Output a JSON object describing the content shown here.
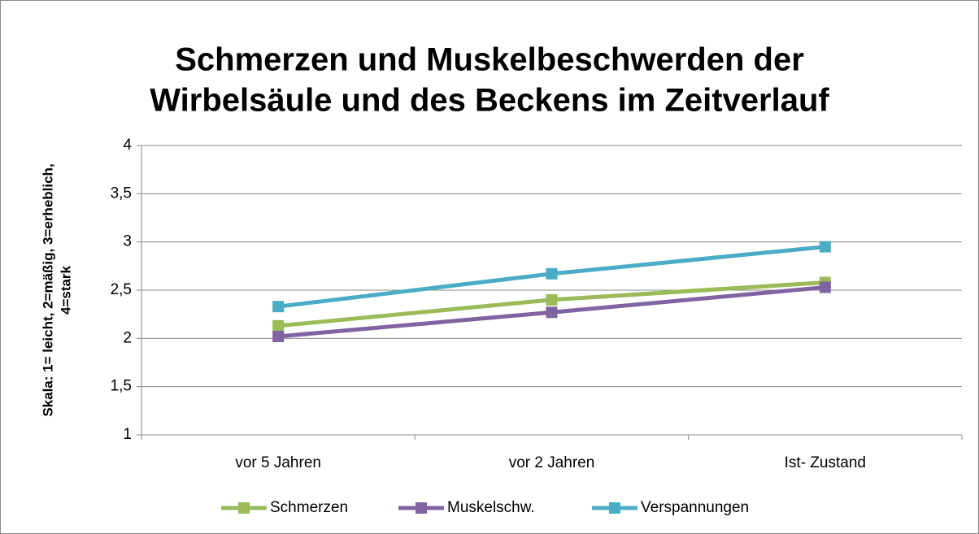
{
  "chart_data": {
    "type": "line",
    "title": [
      "Schmerzen und Muskelbeschwerden der",
      "Wirbelsäule und des Beckens  im Zeitverlauf"
    ],
    "ylabel": [
      "Skala: 1= leicht, 2=mäßig, 3=erheblich,",
      "4=stark"
    ],
    "categories": [
      "vor 5 Jahren",
      "vor 2 Jahren",
      "Ist- Zustand"
    ],
    "series": [
      {
        "name": "Schmerzen",
        "color": "#9bbb59",
        "values": [
          2.13,
          2.4,
          2.58
        ]
      },
      {
        "name": "Muskelschw.",
        "color": "#8064a2",
        "values": [
          2.02,
          2.27,
          2.53
        ]
      },
      {
        "name": "Verspannungen",
        "color": "#4bacc6",
        "values": [
          2.33,
          2.67,
          2.95
        ]
      }
    ],
    "ylim": [
      1,
      4
    ],
    "yticks": [
      1,
      {
        "value": 1.5,
        "label": "1,5"
      },
      2,
      {
        "value": 2.5,
        "label": "2,5"
      },
      3,
      {
        "value": 3.5,
        "label": "3,5"
      },
      4
    ],
    "grid": true,
    "legend": "bottom"
  }
}
